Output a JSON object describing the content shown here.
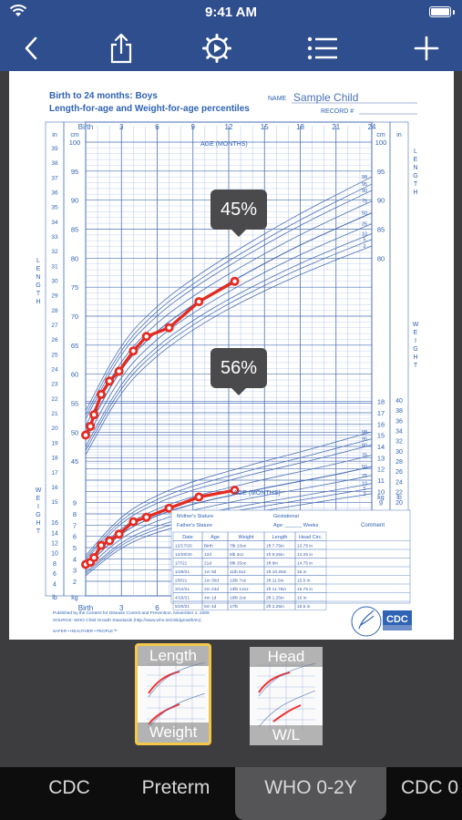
{
  "status": {
    "time": "9:41 AM"
  },
  "nav": {
    "back": "back-icon",
    "share": "share-icon",
    "settings": "settings-icon",
    "list": "list-icon",
    "add": "add-icon"
  },
  "chart": {
    "title_line1": "Birth to 24 months: Boys",
    "title_line2": "Length-for-age and Weight-for-age percentiles",
    "name_label": "NAME",
    "name_value": "Sample Child",
    "record_label": "RECORD #",
    "age_months_label": "AGE (MONTHS)",
    "age_months_label_bottom": "AGE (MONTHS)",
    "top_ticks": [
      "Birth",
      "3",
      "6",
      "9",
      "12",
      "15",
      "18",
      "21",
      "24"
    ],
    "bottom_ticks": [
      "Birth",
      "3",
      "6"
    ],
    "length_bubble": "45%",
    "weight_bubble": "56%",
    "left_units_in": "in",
    "left_units_cm": "cm",
    "right_units_in": "in",
    "right_units_cm": "cm",
    "length_word": "LENGTH",
    "weight_word": "WEIGHT",
    "kg": "kg",
    "lb": "lb",
    "published": "Published by the Centers for Disease Control and Prevention, November 1, 2009",
    "source": "SOURCE: WHO Child Growth Standards (http://www.who.int/childgrowth/en)",
    "safer": "SAFER • HEALTHIER • PEOPLE™",
    "cdc_logo": "CDC",
    "table": {
      "mothers_stature": "Mother's Stature",
      "fathers_stature": "Father's Stature",
      "gestational": "Gestational",
      "age_weeks": "Age: ______ Weeks",
      "comment": "Comment",
      "headers": [
        "Date",
        "Age",
        "Weight",
        "Length",
        "Head Circ."
      ],
      "rows": [
        [
          "12/17/20",
          "Birth",
          "7lb 13oz",
          "1ft 7.75in",
          "13.75 in"
        ],
        [
          "12/28/20",
          "12d",
          "8lb 3oz",
          "1ft 8.25in",
          "14.25 in"
        ],
        [
          "1/7/21",
          "21d",
          "8lb 15oz",
          "1ft 9in",
          "14.75 in"
        ],
        [
          "1/28/21",
          "1m 9d",
          "11lb 6oz",
          "1ft 10.25in",
          "15 in"
        ],
        [
          "2/8/21",
          "1m 30d",
          "12lb 7oz",
          "1ft 11.5in",
          "15.5 in"
        ],
        [
          "3/12/21",
          "2m 23d",
          "13lb 12oz",
          "1ft 11.75in",
          "15.75 in"
        ],
        [
          "4/16/21",
          "4m 1d",
          "16lb 2oz",
          "2ft 1.25in",
          "16 in"
        ],
        [
          "5/20/21",
          "5m 4d",
          "17lb",
          "2ft 2.25in",
          "16.5 in"
        ]
      ]
    }
  },
  "chart_data": {
    "type": "line",
    "title": "Birth to 24 months: Boys — Length-for-age and Weight-for-age percentiles",
    "xlabel": "AGE (MONTHS)",
    "xlim": [
      0,
      24
    ],
    "length": {
      "ylabel": "cm",
      "ylim": [
        45,
        100
      ],
      "percentiles": {
        "2": [
          [
            0,
            46.1
          ],
          [
            3,
            57.3
          ],
          [
            6,
            63.3
          ],
          [
            9,
            67.7
          ],
          [
            12,
            71.3
          ],
          [
            15,
            74.4
          ],
          [
            18,
            77.2
          ],
          [
            21,
            79.7
          ],
          [
            24,
            82.1
          ]
        ],
        "50": [
          [
            0,
            49.9
          ],
          [
            3,
            61.4
          ],
          [
            6,
            67.6
          ],
          [
            9,
            72.0
          ],
          [
            12,
            75.7
          ],
          [
            15,
            79.1
          ],
          [
            18,
            82.3
          ],
          [
            21,
            85.1
          ],
          [
            24,
            87.8
          ]
        ],
        "98": [
          [
            0,
            53.7
          ],
          [
            3,
            65.5
          ],
          [
            6,
            71.9
          ],
          [
            9,
            76.5
          ],
          [
            12,
            80.5
          ],
          [
            15,
            84.2
          ],
          [
            18,
            87.7
          ],
          [
            21,
            90.9
          ],
          [
            24,
            94.0
          ]
        ]
      },
      "patient": [
        [
          0,
          49.5
        ],
        [
          0.4,
          51
        ],
        [
          0.7,
          53
        ],
        [
          1.3,
          56.5
        ],
        [
          2,
          58.8
        ],
        [
          2.8,
          60.5
        ],
        [
          4,
          64
        ],
        [
          5.1,
          66.5
        ],
        [
          7,
          68
        ],
        [
          9.5,
          72.5
        ],
        [
          12.5,
          76
        ]
      ],
      "bubble": "45%"
    },
    "weight": {
      "ylabel": "kg",
      "ylim": [
        2,
        18
      ],
      "percentiles": {
        "2": [
          [
            0,
            2.5
          ],
          [
            3,
            5.1
          ],
          [
            6,
            6.4
          ],
          [
            9,
            7.2
          ],
          [
            12,
            7.8
          ],
          [
            15,
            8.3
          ],
          [
            18,
            8.8
          ],
          [
            21,
            9.3
          ],
          [
            24,
            9.8
          ]
        ],
        "50": [
          [
            0,
            3.3
          ],
          [
            3,
            6.4
          ],
          [
            6,
            7.9
          ],
          [
            9,
            8.9
          ],
          [
            12,
            9.6
          ],
          [
            15,
            10.3
          ],
          [
            18,
            10.9
          ],
          [
            21,
            11.5
          ],
          [
            24,
            12.2
          ]
        ],
        "98": [
          [
            0,
            4.3
          ],
          [
            3,
            7.9
          ],
          [
            6,
            9.7
          ],
          [
            9,
            10.9
          ],
          [
            12,
            11.8
          ],
          [
            15,
            12.7
          ],
          [
            18,
            13.5
          ],
          [
            21,
            14.4
          ],
          [
            24,
            15.3
          ]
        ]
      },
      "patient": [
        [
          0,
          3.5
        ],
        [
          0.4,
          3.7
        ],
        [
          0.7,
          4.1
        ],
        [
          1.3,
          5.2
        ],
        [
          2,
          5.6
        ],
        [
          2.8,
          6.2
        ],
        [
          4,
          7.3
        ],
        [
          5.1,
          7.7
        ],
        [
          7,
          8.5
        ],
        [
          9.5,
          9.5
        ],
        [
          12.5,
          10.1
        ]
      ],
      "bubble": "56%"
    }
  },
  "thumbs": [
    {
      "top": "Length",
      "bottom": "Weight",
      "selected": true
    },
    {
      "top": "Head",
      "bottom": "W/L",
      "selected": false
    }
  ],
  "tabs": [
    "CDC",
    "Preterm",
    "WHO 0-2Y",
    "CDC 0"
  ]
}
